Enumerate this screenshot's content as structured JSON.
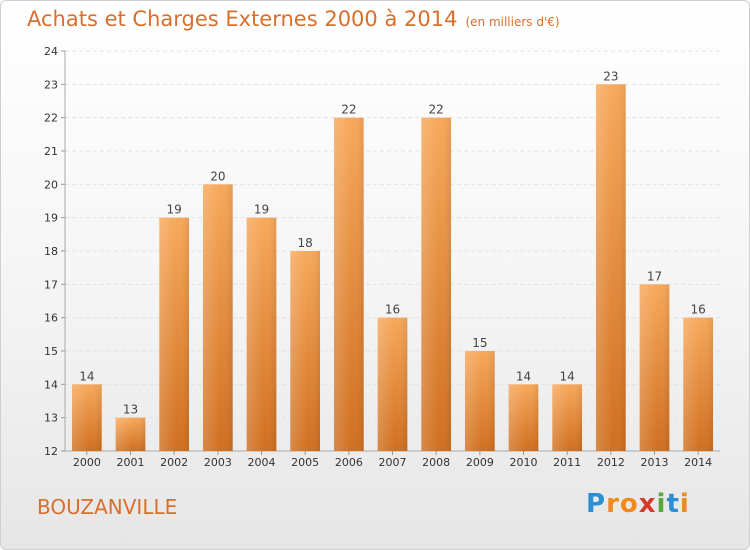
{
  "header": {
    "title": "Achats et Charges Externes 2000 à 2014",
    "subtitle": "(en milliers d'€)"
  },
  "footer": {
    "place": "BOUZANVILLE",
    "logo_letters": [
      "P",
      "r",
      "o",
      "x",
      "i",
      "t",
      "i"
    ],
    "logo_colors": [
      "#2a8fd4",
      "#f08a1c",
      "#f08a1c",
      "#d63a2a",
      "#5aa83c",
      "#2a8fd4",
      "#f08a1c"
    ]
  },
  "colors": {
    "bar_top": "#f7a85a",
    "bar_bottom": "#d06f1f",
    "title": "#d96f2c"
  },
  "chart_data": {
    "type": "bar",
    "categories": [
      "2000",
      "2001",
      "2002",
      "2003",
      "2004",
      "2005",
      "2006",
      "2007",
      "2008",
      "2009",
      "2010",
      "2011",
      "2012",
      "2013",
      "2014"
    ],
    "values": [
      14,
      13,
      19,
      20,
      19,
      18,
      22,
      16,
      22,
      15,
      14,
      14,
      23,
      17,
      16
    ],
    "ylim": [
      12,
      24
    ],
    "yticks": [
      12,
      13,
      14,
      15,
      16,
      17,
      18,
      19,
      20,
      21,
      22,
      23,
      24
    ],
    "grid": true
  }
}
